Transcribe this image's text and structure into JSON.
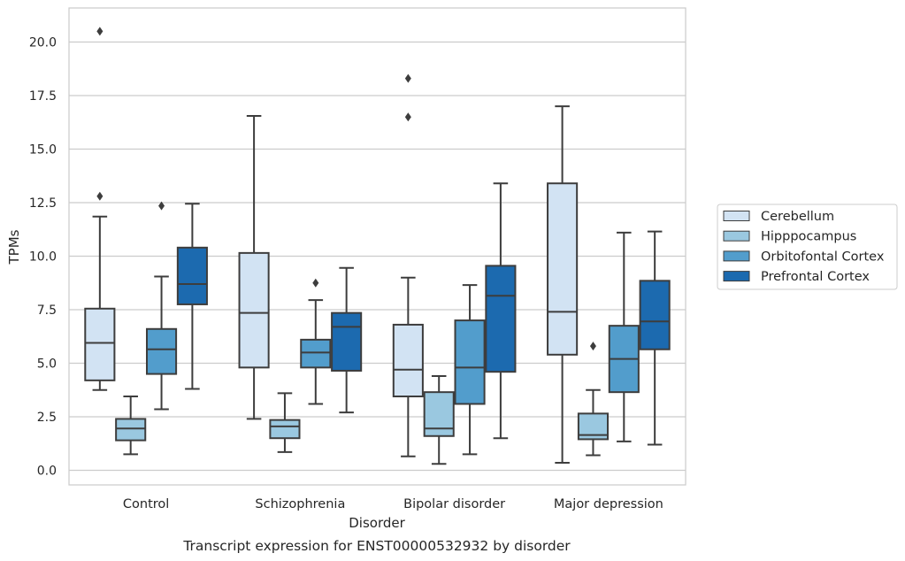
{
  "chart_data": {
    "type": "box",
    "title": "",
    "caption": "Transcript expression for ENST00000532932 by disorder",
    "xlabel": "Disorder",
    "ylabel": "TPMs",
    "ylim": [
      -0.7,
      21.6
    ],
    "yticks": [
      "0.0",
      "2.5",
      "5.0",
      "7.5",
      "10.0",
      "12.5",
      "15.0",
      "17.5",
      "20.0"
    ],
    "grid": "horizontal",
    "legend_position": "right",
    "categories": [
      "Control",
      "Schizophrenia",
      "Bipolar disorder",
      "Major depression"
    ],
    "series": [
      {
        "name": "Cerebellum",
        "color": "#d2e3f3",
        "boxes": [
          {
            "category": "Control",
            "whisker_low": 3.75,
            "q1": 4.2,
            "median": 5.95,
            "q3": 7.55,
            "whisker_high": 11.85,
            "outliers": [
              12.8,
              20.5
            ]
          },
          {
            "category": "Schizophrenia",
            "whisker_low": 2.4,
            "q1": 4.8,
            "median": 7.35,
            "q3": 10.15,
            "whisker_high": 16.55,
            "outliers": []
          },
          {
            "category": "Bipolar disorder",
            "whisker_low": 0.65,
            "q1": 3.45,
            "median": 4.7,
            "q3": 6.8,
            "whisker_high": 9.0,
            "outliers": [
              16.5,
              18.3
            ]
          },
          {
            "category": "Major depression",
            "whisker_low": 0.35,
            "q1": 5.4,
            "median": 7.4,
            "q3": 13.4,
            "whisker_high": 17.0,
            "outliers": []
          }
        ]
      },
      {
        "name": "Hipppocampus",
        "color": "#9ac8e0",
        "boxes": [
          {
            "category": "Control",
            "whisker_low": 0.75,
            "q1": 1.4,
            "median": 1.95,
            "q3": 2.4,
            "whisker_high": 3.45,
            "outliers": []
          },
          {
            "category": "Schizophrenia",
            "whisker_low": 0.85,
            "q1": 1.5,
            "median": 2.05,
            "q3": 2.35,
            "whisker_high": 3.6,
            "outliers": []
          },
          {
            "category": "Bipolar disorder",
            "whisker_low": 0.3,
            "q1": 1.6,
            "median": 1.95,
            "q3": 3.65,
            "whisker_high": 4.4,
            "outliers": []
          },
          {
            "category": "Major depression",
            "whisker_low": 0.7,
            "q1": 1.45,
            "median": 1.65,
            "q3": 2.65,
            "whisker_high": 3.75,
            "outliers": [
              5.8
            ]
          }
        ]
      },
      {
        "name": "Orbitofontal Cortex",
        "color": "#529dcc",
        "boxes": [
          {
            "category": "Control",
            "whisker_low": 2.85,
            "q1": 4.5,
            "median": 5.65,
            "q3": 6.6,
            "whisker_high": 9.05,
            "outliers": [
              12.35
            ]
          },
          {
            "category": "Schizophrenia",
            "whisker_low": 3.1,
            "q1": 4.8,
            "median": 5.5,
            "q3": 6.1,
            "whisker_high": 7.95,
            "outliers": [
              8.75
            ]
          },
          {
            "category": "Bipolar disorder",
            "whisker_low": 0.75,
            "q1": 3.1,
            "median": 4.8,
            "q3": 7.0,
            "whisker_high": 8.65,
            "outliers": []
          },
          {
            "category": "Major depression",
            "whisker_low": 1.35,
            "q1": 3.65,
            "median": 5.2,
            "q3": 6.75,
            "whisker_high": 11.1,
            "outliers": []
          }
        ]
      },
      {
        "name": "Prefrontal Cortex",
        "color": "#1c6aaf",
        "boxes": [
          {
            "category": "Control",
            "whisker_low": 3.8,
            "q1": 7.75,
            "median": 8.7,
            "q3": 10.4,
            "whisker_high": 12.45,
            "outliers": []
          },
          {
            "category": "Schizophrenia",
            "whisker_low": 2.7,
            "q1": 4.65,
            "median": 6.7,
            "q3": 7.35,
            "whisker_high": 9.45,
            "outliers": []
          },
          {
            "category": "Bipolar disorder",
            "whisker_low": 1.5,
            "q1": 4.6,
            "median": 8.15,
            "q3": 9.55,
            "whisker_high": 13.4,
            "outliers": []
          },
          {
            "category": "Major depression",
            "whisker_low": 1.2,
            "q1": 5.65,
            "median": 6.95,
            "q3": 8.85,
            "whisker_high": 11.15,
            "outliers": []
          }
        ]
      }
    ]
  }
}
